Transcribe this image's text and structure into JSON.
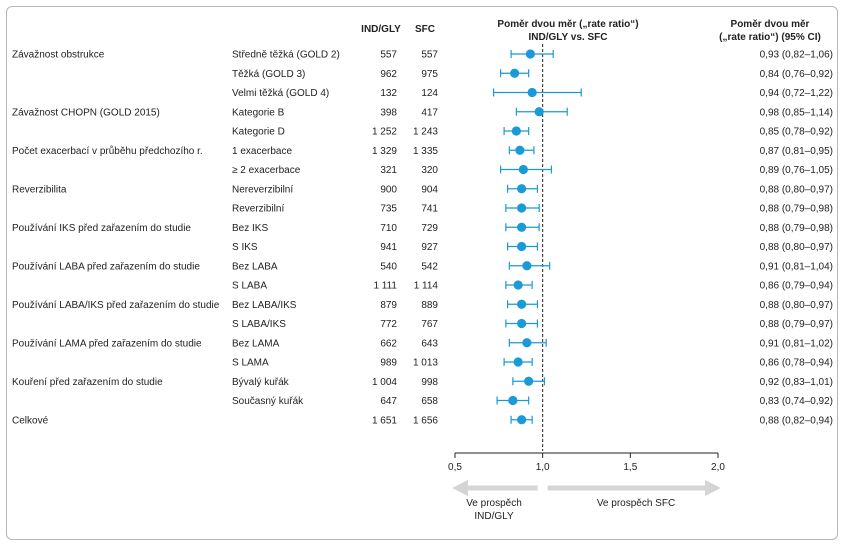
{
  "chart_data": {
    "type": "forest",
    "headers": {
      "col_a": "IND/GLY",
      "col_b": "SFC",
      "plot_title_line1": "Poměr dvou měr („rate ratio“)",
      "plot_title_line2": "IND/GLY vs. SFC",
      "ratio_line1": "Poměr dvou měr",
      "ratio_line2": "(„rate ratio“) (95% CI)"
    },
    "xlim": [
      0.5,
      2.0
    ],
    "x_ticks": [
      {
        "value": 0.5,
        "label": "0,5"
      },
      {
        "value": 1.0,
        "label": "1,0"
      },
      {
        "value": 1.5,
        "label": "1,5"
      },
      {
        "value": 2.0,
        "label": "2,0"
      }
    ],
    "reference_line": 1.0,
    "arrow_left": {
      "line1": "Ve prospěch",
      "line2": "IND/GLY"
    },
    "arrow_right": {
      "line1": "Ve prospěch SFC"
    },
    "colors": {
      "marker": "#1a9ad6",
      "arrow": "#d4d4d4",
      "frame": "#b7b7b7"
    },
    "rows": [
      {
        "group": "Závažnost obstrukce",
        "sub": "Středně těžká (GOLD 2)",
        "n_a": "557",
        "n_b": "557",
        "est": 0.93,
        "lo": 0.82,
        "hi": 1.06,
        "ci_text": "0,93 (0,82–1,06)"
      },
      {
        "group": "",
        "sub": "Těžká (GOLD 3)",
        "n_a": "962",
        "n_b": "975",
        "est": 0.84,
        "lo": 0.76,
        "hi": 0.92,
        "ci_text": "0,84 (0,76–0,92)"
      },
      {
        "group": "",
        "sub": "Velmi těžká (GOLD 4)",
        "n_a": "132",
        "n_b": "124",
        "est": 0.94,
        "lo": 0.72,
        "hi": 1.22,
        "ci_text": "0,94 (0,72–1,22)"
      },
      {
        "group": "Závažnost CHOPN (GOLD 2015)",
        "sub": "Kategorie B",
        "n_a": "398",
        "n_b": "417",
        "est": 0.98,
        "lo": 0.85,
        "hi": 1.14,
        "ci_text": "0,98 (0,85–1,14)"
      },
      {
        "group": "",
        "sub": "Kategorie D",
        "n_a": "1 252",
        "n_b": "1 243",
        "est": 0.85,
        "lo": 0.78,
        "hi": 0.92,
        "ci_text": "0,85 (0,78–0,92)"
      },
      {
        "group": "Počet exacerbací v průběhu předchozího r.",
        "sub": "1 exacerbace",
        "n_a": "1 329",
        "n_b": "1 335",
        "est": 0.87,
        "lo": 0.81,
        "hi": 0.95,
        "ci_text": "0,87 (0,81–0,95)"
      },
      {
        "group": "",
        "sub": "≥ 2 exacerbace",
        "n_a": "321",
        "n_b": "320",
        "est": 0.89,
        "lo": 0.76,
        "hi": 1.05,
        "ci_text": "0,89 (0,76–1,05)"
      },
      {
        "group": "Reverzibilita",
        "sub": "Nereverzibilní",
        "n_a": "900",
        "n_b": "904",
        "est": 0.88,
        "lo": 0.8,
        "hi": 0.97,
        "ci_text": "0,88 (0,80–0,97)"
      },
      {
        "group": "",
        "sub": "Reverzibilní",
        "n_a": "735",
        "n_b": "741",
        "est": 0.88,
        "lo": 0.79,
        "hi": 0.98,
        "ci_text": "0,88 (0,79–0,98)"
      },
      {
        "group": "Používání IKS před zařazením do studie",
        "sub": "Bez IKS",
        "n_a": "710",
        "n_b": "729",
        "est": 0.88,
        "lo": 0.79,
        "hi": 0.98,
        "ci_text": "0,88 (0,79–0,98)"
      },
      {
        "group": "",
        "sub": "S IKS",
        "n_a": "941",
        "n_b": "927",
        "est": 0.88,
        "lo": 0.8,
        "hi": 0.97,
        "ci_text": "0,88 (0,80–0,97)"
      },
      {
        "group": "Používání LABA před zařazením do studie",
        "sub": "Bez LABA",
        "n_a": "540",
        "n_b": "542",
        "est": 0.91,
        "lo": 0.81,
        "hi": 1.04,
        "ci_text": "0,91 (0,81–1,04)"
      },
      {
        "group": "",
        "sub": "S LABA",
        "n_a": "1 111",
        "n_b": "1 114",
        "est": 0.86,
        "lo": 0.79,
        "hi": 0.94,
        "ci_text": "0,86 (0,79–0,94)"
      },
      {
        "group": "Používání LABA/IKS před zařazením do studie",
        "sub": "Bez LABA/IKS",
        "n_a": "879",
        "n_b": "889",
        "est": 0.88,
        "lo": 0.8,
        "hi": 0.97,
        "ci_text": "0,88 (0,80–0,97)"
      },
      {
        "group": "",
        "sub": "S LABA/IKS",
        "n_a": "772",
        "n_b": "767",
        "est": 0.88,
        "lo": 0.79,
        "hi": 0.97,
        "ci_text": "0,88 (0,79–0,97)"
      },
      {
        "group": "Používání LAMA před zařazením do studie",
        "sub": "Bez LAMA",
        "n_a": "662",
        "n_b": "643",
        "est": 0.91,
        "lo": 0.81,
        "hi": 1.02,
        "ci_text": "0,91 (0,81–1,02)"
      },
      {
        "group": "",
        "sub": "S LAMA",
        "n_a": "989",
        "n_b": "1 013",
        "est": 0.86,
        "lo": 0.78,
        "hi": 0.94,
        "ci_text": "0,86 (0,78–0,94)"
      },
      {
        "group": "Kouření před zařazením do studie",
        "sub": "Bývalý kuřák",
        "n_a": "1 004",
        "n_b": "998",
        "est": 0.92,
        "lo": 0.83,
        "hi": 1.01,
        "ci_text": "0,92 (0,83–1,01)"
      },
      {
        "group": "",
        "sub": "Současný kuřák",
        "n_a": "647",
        "n_b": "658",
        "est": 0.83,
        "lo": 0.74,
        "hi": 0.92,
        "ci_text": "0,83 (0,74–0,92)"
      },
      {
        "group": "Celkové",
        "sub": "",
        "n_a": "1 651",
        "n_b": "1 656",
        "est": 0.88,
        "lo": 0.82,
        "hi": 0.94,
        "ci_text": "0,88 (0,82–0,94)"
      }
    ]
  }
}
